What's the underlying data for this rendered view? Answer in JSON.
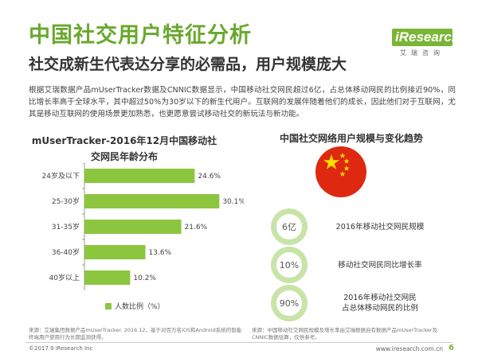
{
  "header": {
    "title": "中国社交用户特征分析",
    "subtitle": "社交成新生代表达分享的必需品，用户规模庞大",
    "brand_logo": "iResearch",
    "brand_cn": "艾瑞咨询"
  },
  "intro": "根据艾瑞数据产品mUserTracker数据及CNNIC数据显示，中国移动社交网民超过6亿，占总体移动网民的比例接近90%，同比增长率高于全球水平，其中超过50%为30岁以下的新生代用户。互联网的发展伴随着他们的成长，因此他们对于互联网，尤其是移动互联网的使用场景更加熟悉，也更愿意尝试移动社交的新玩法与新功能。",
  "left_title": "mUserTracker-2016年12月中国移动社交网民年龄分布",
  "right_title": "中国社交网络用户规模与变化趋势",
  "chart_data": {
    "type": "bar",
    "orientation": "horizontal",
    "title": "mUserTracker-2016年12月中国移动社交网民年龄分布",
    "categories": [
      "24岁及以下",
      "25-30岁",
      "31-35岁",
      "36-40岁",
      "40岁以上"
    ],
    "series": [
      {
        "name": "人数比例（%）",
        "values": [
          24.6,
          30.1,
          21.6,
          13.6,
          10.2
        ],
        "color": "#8cc63f"
      }
    ],
    "value_labels": [
      "24.6%",
      "30.1%",
      "21.6%",
      "13.6%",
      "10.2%"
    ],
    "xlim": [
      0,
      32
    ],
    "grid": false,
    "legend": "bottom"
  },
  "legend_label": "人数比例（%）",
  "stats": [
    {
      "value": "6亿",
      "label": "2016年移动社交网民规模"
    },
    {
      "value": "10%",
      "label": "移动社交网民同比增长率"
    },
    {
      "value": "90%",
      "label": "2016年移动社交网民\n占总体移动网民的比例"
    }
  ],
  "colors": {
    "brand_green": "#6aa82e",
    "bar_green": "#8cc63f",
    "flag_red": "#de2910",
    "flag_yellow": "#ffde00"
  },
  "source_left": "来源：艾瑞集团数据产品mUserTracker. 2016.12，基于对百万名iOS和Android系统的智能终端用户使用行为长期监测获得。",
  "source_right": "来源：中国移动社交网民规模及增长率由艾瑞根据自有数据产品mUserTracker及CNNIC数据估算，仅供参考。",
  "footer": {
    "copyright": "©2017.9 iResearch Inc",
    "website": "www.iresearch.com.cn",
    "page_number": "6"
  }
}
